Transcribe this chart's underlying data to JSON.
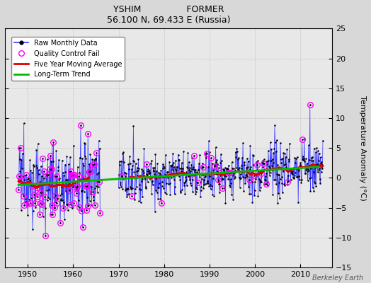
{
  "title1": "YSHIM                FORMER",
  "title2": "56.100 N, 69.433 E (Russia)",
  "ylabel": "Temperature Anomaly (°C)",
  "xlabel_bottom": "Berkeley Earth",
  "ylim": [
    -15,
    25
  ],
  "yticks": [
    -15,
    -10,
    -5,
    0,
    5,
    10,
    15,
    20,
    25
  ],
  "xlim": [
    1945,
    2017
  ],
  "xticks": [
    1950,
    1960,
    1970,
    1980,
    1990,
    2000,
    2010
  ],
  "bg_color": "#d8d8d8",
  "plot_bg_color": "#e8e8e8",
  "raw_line_color": "#3333ff",
  "raw_dot_color": "#000000",
  "qc_color": "#ff00ff",
  "ma_color": "#dd0000",
  "trend_color": "#00bb00",
  "figsize": [
    5.24,
    4.0
  ],
  "dpi": 100
}
